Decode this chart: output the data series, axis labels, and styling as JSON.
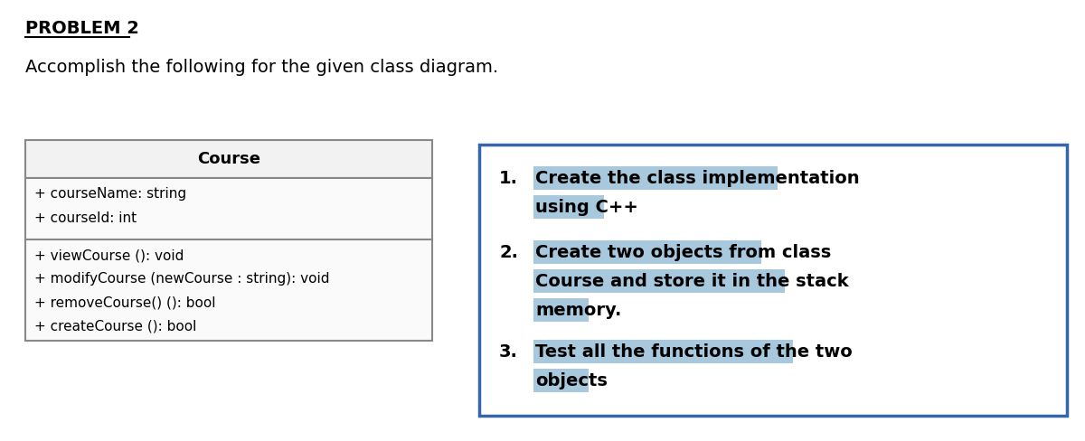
{
  "title": "PROBLEM 2",
  "subtitle": "Accomplish the following for the given class diagram.",
  "class_name": "Course",
  "attributes": [
    "+ courseName: string",
    "+ courseId: int"
  ],
  "methods": [
    "+ viewCourse (): void",
    "+ modifyCourse (newCourse : string): void",
    "+ removeCourse() (): bool",
    "+ createCourse (): bool"
  ],
  "highlight_color": "#a8c8de",
  "bg_color": "#ffffff",
  "class_box_border": "#888888",
  "task_box_border": "#3366aa",
  "task_box_bg": "#ffffff",
  "class_header_bg": "#f2f2f2",
  "class_body_bg": "#fafafa",
  "title_fontsize": 14,
  "subtitle_fontsize": 14,
  "class_name_fontsize": 13,
  "attr_fontsize": 11,
  "task_num_fontsize": 14,
  "task_text_fontsize": 14,
  "task_entries": [
    {
      "num": "1.",
      "lines": [
        "Create the class implementation",
        "using C++"
      ],
      "highlight": [
        true,
        true
      ]
    },
    {
      "num": "2.",
      "lines": [
        "Create two objects from class",
        "Course and store it in the stack",
        "memory."
      ],
      "highlight": [
        true,
        true,
        true
      ]
    },
    {
      "num": "3.",
      "lines": [
        "Test all the functions of the two",
        "objects"
      ],
      "highlight": [
        true,
        true
      ]
    }
  ]
}
